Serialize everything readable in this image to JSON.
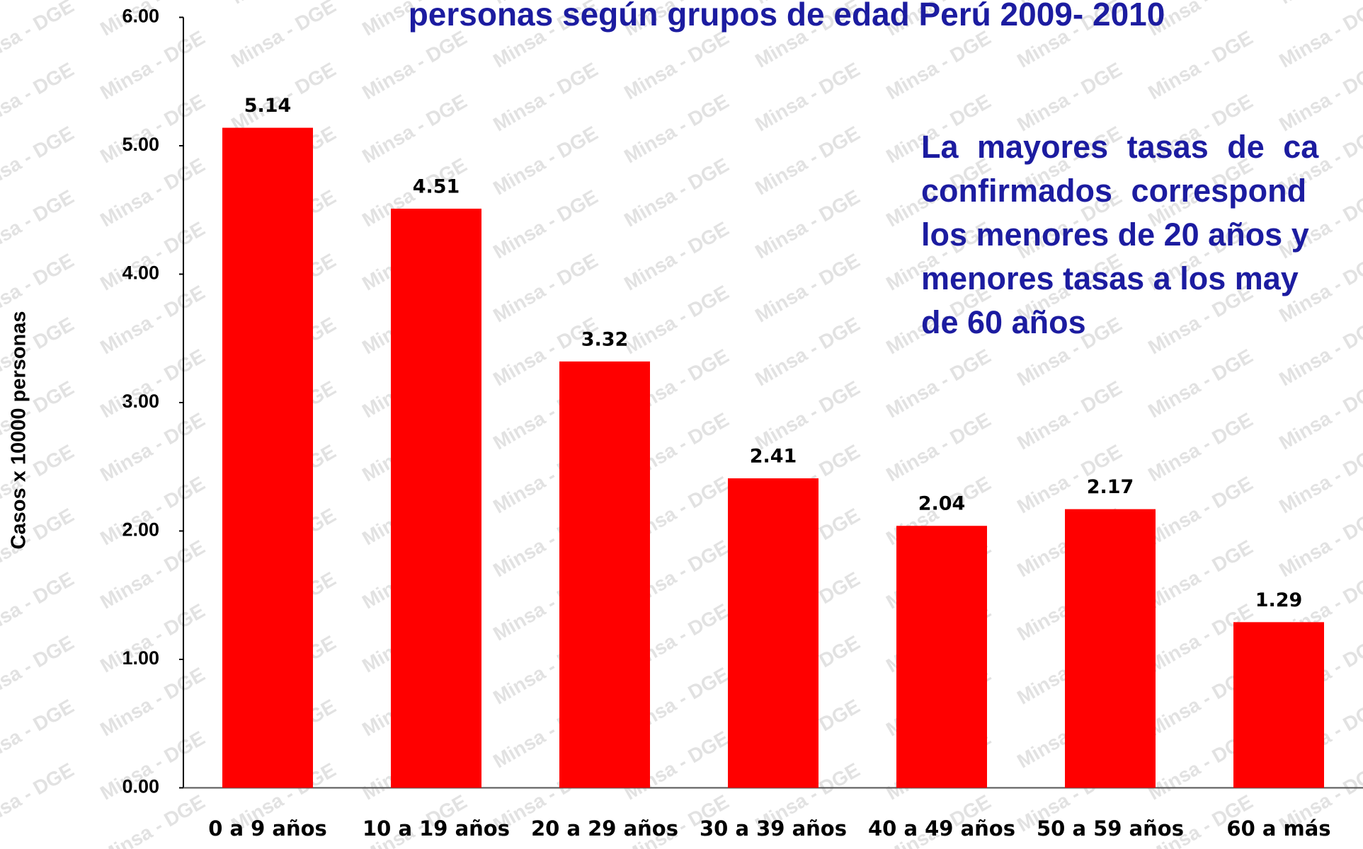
{
  "chart_data": {
    "type": "bar",
    "title": "personas según grupos de edad Perú 2009- 2010",
    "ylabel": "Casos x 10000 personas",
    "annotation": [
      "La mayores tasas de ca",
      "confirmados correspond",
      "los menores de 20 años y",
      "menores tasas a los may",
      "de 60 años"
    ],
    "watermark": "Minsa - DGE",
    "categories": [
      "0 a 9 años",
      "10 a 19 años",
      "20 a 29 años",
      "30 a 39 años",
      "40 a 49 años",
      "50 a 59 años",
      "60 a más"
    ],
    "values": [
      5.14,
      4.51,
      3.32,
      2.41,
      2.04,
      2.17,
      1.29
    ],
    "color": "#ff0000",
    "ylim": [
      0,
      6
    ],
    "yticks": [
      {
        "value": 0,
        "label": "0.00"
      },
      {
        "value": 1,
        "label": "1.00"
      },
      {
        "value": 2,
        "label": "2.00"
      },
      {
        "value": 3,
        "label": "3.00"
      },
      {
        "value": 4,
        "label": "4.00"
      },
      {
        "value": 5,
        "label": "5.00"
      },
      {
        "value": 6,
        "label": "6.00"
      }
    ],
    "grid": false
  }
}
